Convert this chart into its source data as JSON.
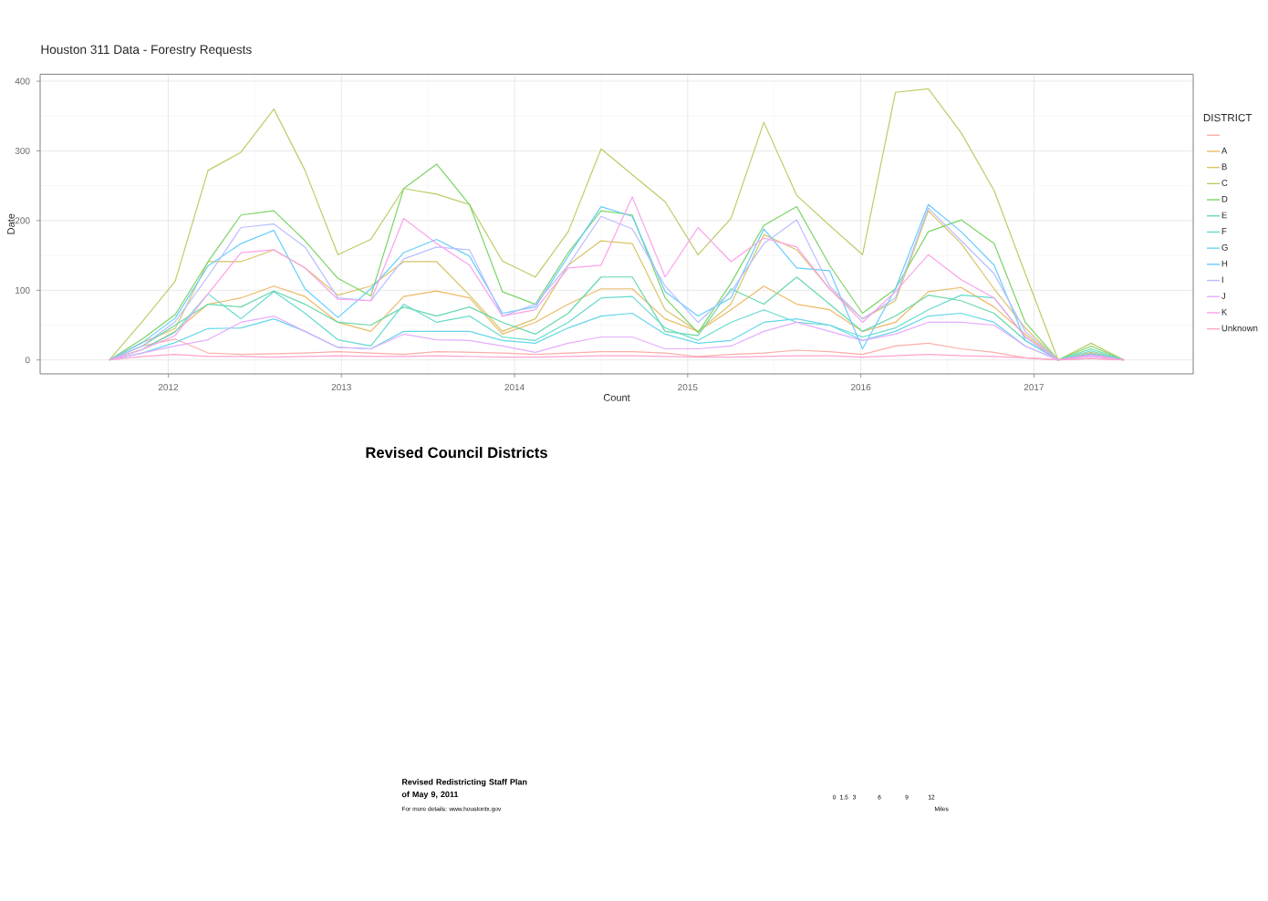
{
  "chart_data": [
    {
      "type": "line",
      "title": "Houston 311 Data - Forestry Requests",
      "xlabel": "Count",
      "ylabel": "Date",
      "legend_title": "DISTRICT",
      "x": [
        2011.66,
        2011.85,
        2012.04,
        2012.23,
        2012.42,
        2012.61,
        2012.79,
        2012.98,
        2013.17,
        2013.36,
        2013.55,
        2013.74,
        2013.93,
        2014.12,
        2014.31,
        2014.5,
        2014.68,
        2014.87,
        2015.06,
        2015.25,
        2015.44,
        2015.63,
        2015.82,
        2016.01,
        2016.2,
        2016.39,
        2016.58,
        2016.77,
        2016.95,
        2017.14,
        2017.33,
        2017.52
      ],
      "xlim": [
        2011.26,
        2017.92
      ],
      "ylim": [
        -20,
        410
      ],
      "xticks": [
        2012,
        2013,
        2014,
        2015,
        2016,
        2017
      ],
      "yticks": [
        0,
        100,
        200,
        300,
        400
      ],
      "grid": true,
      "legend": "right",
      "series": [
        {
          "color": "#fbada7",
          "values": [
            0,
            20,
            30,
            10,
            8,
            9,
            10,
            12,
            10,
            8,
            12,
            11,
            10,
            8,
            10,
            12,
            12,
            10,
            5,
            8,
            10,
            14,
            12,
            8,
            20,
            24,
            16,
            11,
            3,
            0,
            2,
            0
          ]
        },
        {
          "name": "A",
          "color": "#edb966",
          "values": [
            0,
            15,
            41,
            80,
            89,
            106,
            91,
            54,
            41,
            91,
            99,
            89,
            37,
            54,
            80,
            102,
            102,
            59,
            41,
            72,
            106,
            80,
            72,
            41,
            54,
            98,
            104,
            76,
            37,
            0,
            9,
            0
          ]
        },
        {
          "name": "B",
          "color": "#d8c466",
          "values": [
            0,
            25,
            45,
            141,
            141,
            158,
            132,
            93,
            106,
            141,
            141,
            93,
            41,
            59,
            136,
            171,
            167,
            72,
            41,
            80,
            180,
            158,
            102,
            59,
            85,
            214,
            167,
            102,
            46,
            0,
            11,
            0
          ]
        },
        {
          "name": "C",
          "color": "#bacd66",
          "values": [
            0,
            55,
            113,
            272,
            298,
            360,
            272,
            151,
            173,
            246,
            238,
            223,
            142,
            119,
            184,
            303,
            266,
            227,
            151,
            203,
            341,
            236,
            193,
            151,
            384,
            389,
            326,
            243,
            124,
            0,
            24,
            0
          ]
        },
        {
          "name": "D",
          "color": "#7cd466",
          "values": [
            0,
            30,
            65,
            141,
            208,
            214,
            171,
            117,
            92,
            246,
            281,
            223,
            98,
            80,
            154,
            214,
            208,
            89,
            39,
            110,
            193,
            220,
            136,
            67,
            102,
            184,
            201,
            167,
            54,
            0,
            20,
            0
          ]
        },
        {
          "name": "E",
          "color": "#66d8a9",
          "values": [
            0,
            20,
            50,
            80,
            76,
            99,
            80,
            54,
            50,
            76,
            63,
            76,
            54,
            37,
            67,
            119,
            119,
            41,
            35,
            102,
            80,
            119,
            80,
            41,
            63,
            93,
            85,
            67,
            28,
            0,
            16,
            0
          ]
        },
        {
          "name": "F",
          "color": "#66dacd",
          "values": [
            0,
            15,
            40,
            95,
            59,
            98,
            67,
            29,
            20,
            80,
            54,
            63,
            33,
            28,
            54,
            89,
            91,
            46,
            28,
            54,
            72,
            54,
            50,
            33,
            46,
            72,
            93,
            89,
            33,
            0,
            13,
            0
          ]
        },
        {
          "name": "G",
          "color": "#66d6e9",
          "values": [
            0,
            10,
            25,
            45,
            46,
            59,
            41,
            18,
            16,
            41,
            41,
            41,
            28,
            24,
            46,
            63,
            67,
            37,
            24,
            28,
            54,
            59,
            50,
            28,
            41,
            63,
            67,
            54,
            20,
            0,
            7,
            0
          ]
        },
        {
          "name": "H",
          "color": "#66cdfd",
          "values": [
            0,
            25,
            60,
            135,
            167,
            186,
            102,
            61,
            102,
            154,
            173,
            149,
            67,
            76,
            149,
            220,
            206,
            98,
            63,
            89,
            188,
            132,
            128,
            16,
            102,
            223,
            184,
            136,
            28,
            0,
            9,
            0
          ]
        },
        {
          "name": "I",
          "color": "#b9beff",
          "values": [
            0,
            20,
            55,
            120,
            190,
            195,
            162,
            89,
            85,
            145,
            162,
            158,
            63,
            80,
            136,
            206,
            188,
            106,
            54,
            98,
            167,
            201,
            106,
            59,
            89,
            218,
            171,
            124,
            41,
            0,
            7,
            0
          ]
        },
        {
          "name": "J",
          "color": "#e6acfe",
          "values": [
            0,
            10,
            20,
            29,
            54,
            63,
            41,
            18,
            16,
            37,
            29,
            28,
            20,
            11,
            24,
            33,
            33,
            16,
            16,
            20,
            41,
            54,
            41,
            28,
            37,
            54,
            54,
            50,
            20,
            0,
            5,
            0
          ]
        },
        {
          "name": "K",
          "color": "#fba1eb",
          "values": [
            0,
            15,
            35,
            95,
            154,
            158,
            132,
            87,
            85,
            203,
            167,
            136,
            63,
            72,
            132,
            136,
            234,
            119,
            190,
            141,
            175,
            162,
            102,
            54,
            98,
            151,
            115,
            89,
            33,
            0,
            7,
            0
          ]
        },
        {
          "name": "Unknown",
          "color": "#ffa3cd",
          "values": [
            0,
            5,
            8,
            5,
            5,
            4,
            5,
            6,
            5,
            5,
            6,
            5,
            4,
            4,
            5,
            6,
            6,
            5,
            4,
            4,
            5,
            6,
            6,
            4,
            6,
            8,
            6,
            5,
            3,
            0,
            2,
            0
          ]
        }
      ]
    },
    {
      "type": "other",
      "title": "Revised Council Districts",
      "annotations": [
        "Revised Redistricting Staff Plan of May 9, 2011",
        "For more details: www.houstontx.gov",
        "0",
        "1.5",
        "3",
        "6",
        "9",
        "12",
        "Miles"
      ]
    }
  ]
}
